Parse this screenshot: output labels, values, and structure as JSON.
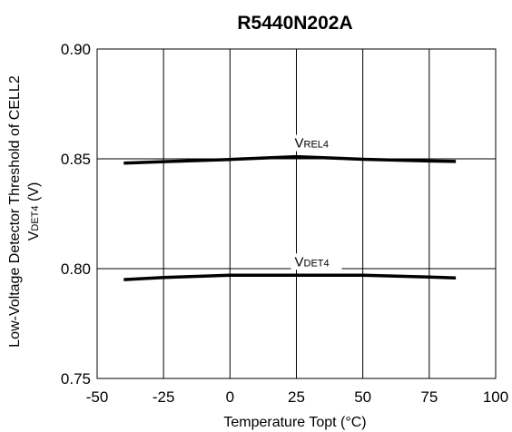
{
  "chart_data": {
    "type": "line",
    "title": "R5440N202A",
    "xlabel": "Temperature Topt (°C)",
    "ylabel_line1": "Low-Voltage Detector Threshold of CELL2",
    "ylabel_line2_main": "V",
    "ylabel_line2_sub": "DET4",
    "ylabel_line2_unit": " (V)",
    "xlim": [
      -50,
      100
    ],
    "ylim": [
      0.75,
      0.9
    ],
    "xticks": [
      "-50",
      "-25",
      "0",
      "25",
      "50",
      "75",
      "100"
    ],
    "yticks": [
      "0.75",
      "0.80",
      "0.85",
      "0.90"
    ],
    "grid": true,
    "series": [
      {
        "name": "VREL4",
        "label_main": "V",
        "label_sub": "REL4",
        "color": "#000000",
        "x": [
          -40,
          -25,
          0,
          25,
          50,
          75,
          85
        ],
        "y": [
          0.848,
          0.8487,
          0.8497,
          0.851,
          0.8498,
          0.849,
          0.8488
        ]
      },
      {
        "name": "VDET4",
        "label_main": "V",
        "label_sub": "DET4",
        "color": "#000000",
        "x": [
          -40,
          -25,
          0,
          25,
          50,
          75,
          85
        ],
        "y": [
          0.795,
          0.796,
          0.797,
          0.797,
          0.797,
          0.7962,
          0.7958
        ]
      }
    ]
  }
}
